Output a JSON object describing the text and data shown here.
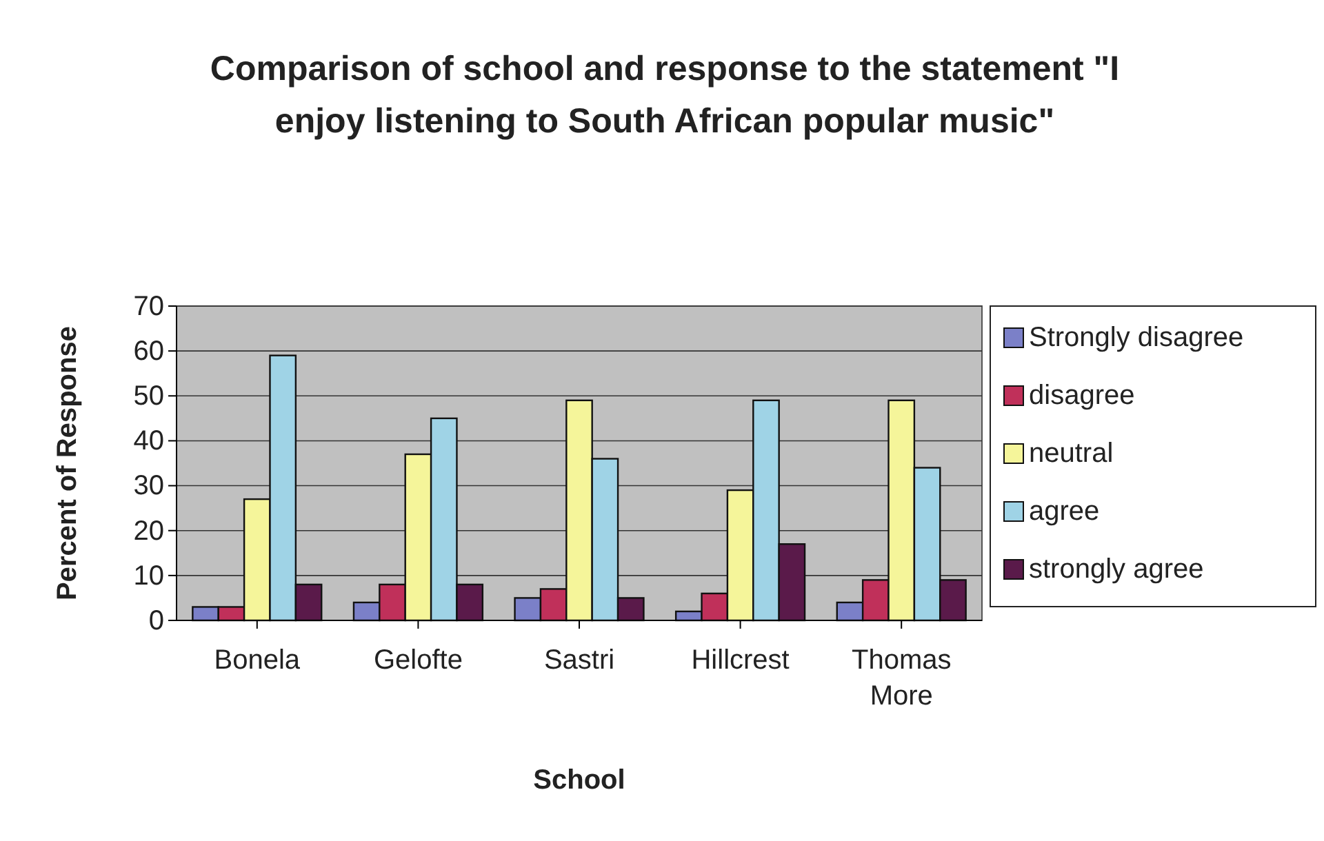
{
  "chart_data": {
    "type": "bar",
    "title": "Comparison of school and response to the statement \"I enjoy listening to South African popular music\"",
    "xlabel": "School",
    "ylabel": "Percent of Response",
    "categories": [
      "Bonela",
      "Gelofte",
      "Sastri",
      "Hillcrest",
      "Thomas More"
    ],
    "series": [
      {
        "name": "Strongly disagree",
        "color": "#7b80c8",
        "values": [
          3,
          4,
          5,
          2,
          4
        ]
      },
      {
        "name": "disagree",
        "color": "#c0305a",
        "values": [
          3,
          8,
          7,
          6,
          9
        ]
      },
      {
        "name": "neutral",
        "color": "#f5f59a",
        "values": [
          27,
          37,
          49,
          29,
          49
        ]
      },
      {
        "name": "agree",
        "color": "#9fd3e6",
        "values": [
          59,
          45,
          36,
          49,
          34
        ]
      },
      {
        "name": "strongly agree",
        "color": "#5a1a4a",
        "values": [
          8,
          8,
          5,
          17,
          9
        ]
      }
    ],
    "ylim": [
      0,
      70
    ],
    "yticks": [
      0,
      10,
      20,
      30,
      40,
      50,
      60,
      70
    ],
    "grid": "y",
    "legend": "right"
  }
}
